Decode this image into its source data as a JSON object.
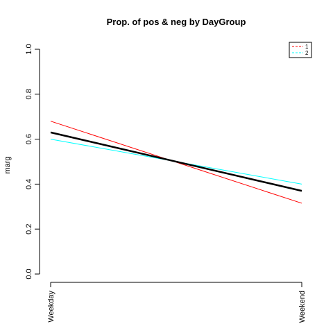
{
  "chart_data": {
    "type": "line",
    "title": "Prop. of pos & neg by DayGroup",
    "xlabel": "",
    "ylabel": "marg",
    "categories": [
      "Weekday",
      "Weekend"
    ],
    "ylim": [
      0,
      1
    ],
    "yticks": [
      "0.0",
      "0.2",
      "0.4",
      "0.6",
      "0.8",
      "1.0"
    ],
    "series": [
      {
        "name": "1",
        "values": [
          0.68,
          0.315
        ],
        "color": "#ff0000",
        "in_legend": true
      },
      {
        "name": "2",
        "values": [
          0.6,
          0.4
        ],
        "color": "#00ffff",
        "in_legend": true
      },
      {
        "name": "",
        "values": [
          0.63,
          0.37
        ],
        "color": "#000000",
        "in_legend": false
      }
    ],
    "legend": {
      "position": "top-right",
      "line_style": "dashed"
    },
    "grid": false
  }
}
